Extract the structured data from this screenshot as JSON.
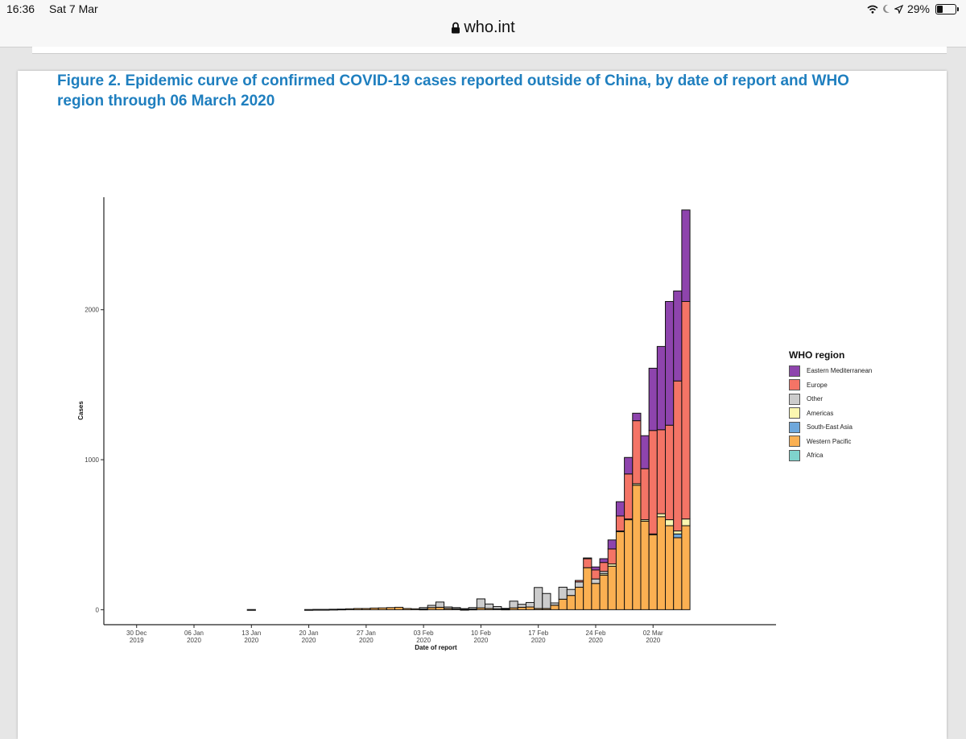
{
  "status_bar": {
    "time": "16:36",
    "date": "Sat 7 Mar",
    "battery": "29%"
  },
  "browser": {
    "url": "who.int"
  },
  "figure": {
    "title": "Figure 2. Epidemic curve of confirmed COVID-19 cases reported outside of China, by date of report and WHO region through 06 March 2020"
  },
  "colors": {
    "Eastern Mediterranean": "#8e44ad",
    "Europe": "#f47466",
    "Other": "#cccccc",
    "Americas": "#fbf7b0",
    "South-East Asia": "#6fa8dc",
    "Western Pacific": "#fbb052",
    "Africa": "#7fd3cc"
  },
  "legend": {
    "title": "WHO region",
    "items": [
      "Eastern Mediterranean",
      "Europe",
      "Other",
      "Americas",
      "South-East Asia",
      "Western Pacific",
      "Africa"
    ]
  },
  "chart_data": {
    "type": "bar",
    "stacked": true,
    "title": "",
    "xlabel": "Date of report",
    "ylabel": "Cases",
    "ylim": [
      -100,
      2750
    ],
    "yticks": [
      0,
      1000,
      2000
    ],
    "xlim": [
      "2019-12-26",
      "2020-03-17"
    ],
    "xticks": [
      {
        "date": "2019-12-30",
        "line1": "30 Dec",
        "line2": "2019"
      },
      {
        "date": "2020-01-06",
        "line1": "06 Jan",
        "line2": "2020"
      },
      {
        "date": "2020-01-13",
        "line1": "13 Jan",
        "line2": "2020"
      },
      {
        "date": "2020-01-20",
        "line1": "20 Jan",
        "line2": "2020"
      },
      {
        "date": "2020-01-27",
        "line1": "27 Jan",
        "line2": "2020"
      },
      {
        "date": "2020-02-03",
        "line1": "03 Feb",
        "line2": "2020"
      },
      {
        "date": "2020-02-10",
        "line1": "10 Feb",
        "line2": "2020"
      },
      {
        "date": "2020-02-17",
        "line1": "17 Feb",
        "line2": "2020"
      },
      {
        "date": "2020-02-24",
        "line1": "24 Feb",
        "line2": "2020"
      },
      {
        "date": "2020-03-02",
        "line1": "02 Mar",
        "line2": "2020"
      }
    ],
    "series_order": [
      "Africa",
      "Western Pacific",
      "South-East Asia",
      "Americas",
      "Other",
      "Europe",
      "Eastern Mediterranean"
    ],
    "dates": [
      "2020-01-13",
      "2020-01-20",
      "2020-01-21",
      "2020-01-22",
      "2020-01-23",
      "2020-01-24",
      "2020-01-25",
      "2020-01-26",
      "2020-01-27",
      "2020-01-28",
      "2020-01-29",
      "2020-01-30",
      "2020-01-31",
      "2020-02-01",
      "2020-02-02",
      "2020-02-03",
      "2020-02-04",
      "2020-02-05",
      "2020-02-06",
      "2020-02-07",
      "2020-02-08",
      "2020-02-09",
      "2020-02-10",
      "2020-02-11",
      "2020-02-12",
      "2020-02-13",
      "2020-02-14",
      "2020-02-15",
      "2020-02-16",
      "2020-02-17",
      "2020-02-18",
      "2020-02-19",
      "2020-02-20",
      "2020-02-21",
      "2020-02-22",
      "2020-02-23",
      "2020-02-24",
      "2020-02-25",
      "2020-02-26",
      "2020-02-27",
      "2020-02-28",
      "2020-02-29",
      "2020-03-01",
      "2020-03-02",
      "2020-03-03",
      "2020-03-04",
      "2020-03-05",
      "2020-03-06"
    ],
    "series": [
      {
        "name": "Western Pacific",
        "values": [
          1,
          1,
          2,
          2,
          3,
          4,
          6,
          8,
          8,
          11,
          12,
          14,
          16,
          8,
          6,
          4,
          14,
          16,
          8,
          6,
          2,
          4,
          12,
          8,
          6,
          4,
          12,
          16,
          18,
          8,
          8,
          30,
          70,
          95,
          150,
          280,
          175,
          230,
          290,
          520,
          600,
          830,
          590,
          500,
          620,
          560,
          480,
          560
        ]
      },
      {
        "name": "South-East Asia",
        "values": [
          0,
          0,
          0,
          0,
          0,
          0,
          0,
          0,
          0,
          0,
          0,
          0,
          0,
          0,
          0,
          0,
          0,
          0,
          0,
          0,
          0,
          0,
          0,
          0,
          0,
          0,
          0,
          0,
          0,
          0,
          0,
          0,
          0,
          0,
          0,
          0,
          0,
          0,
          0,
          0,
          0,
          0,
          0,
          0,
          0,
          0,
          25,
          0
        ]
      },
      {
        "name": "Americas",
        "values": [
          0,
          0,
          0,
          0,
          0,
          0,
          0,
          0,
          0,
          0,
          0,
          0,
          0,
          0,
          0,
          0,
          0,
          0,
          0,
          0,
          0,
          0,
          0,
          0,
          0,
          0,
          0,
          0,
          0,
          0,
          0,
          0,
          0,
          0,
          0,
          0,
          0,
          10,
          15,
          5,
          5,
          10,
          10,
          5,
          20,
          40,
          20,
          45
        ]
      },
      {
        "name": "Other",
        "values": [
          0,
          0,
          0,
          0,
          0,
          0,
          0,
          0,
          0,
          0,
          0,
          0,
          0,
          0,
          0,
          10,
          15,
          35,
          10,
          8,
          5,
          10,
          60,
          30,
          15,
          5,
          45,
          20,
          30,
          140,
          100,
          15,
          80,
          40,
          35,
          0,
          30,
          15,
          0,
          0,
          0,
          0,
          0,
          0,
          0,
          0,
          0,
          0
        ]
      },
      {
        "name": "Europe",
        "values": [
          0,
          0,
          0,
          0,
          0,
          0,
          0,
          0,
          0,
          0,
          0,
          0,
          0,
          0,
          0,
          0,
          0,
          0,
          0,
          0,
          0,
          0,
          0,
          0,
          0,
          0,
          0,
          0,
          0,
          0,
          0,
          0,
          0,
          0,
          10,
          60,
          60,
          60,
          100,
          100,
          300,
          420,
          340,
          690,
          560,
          630,
          1000,
          1450
        ]
      },
      {
        "name": "Eastern Mediterranean",
        "values": [
          0,
          0,
          0,
          0,
          0,
          0,
          0,
          0,
          0,
          0,
          0,
          0,
          0,
          0,
          0,
          0,
          0,
          0,
          0,
          0,
          0,
          0,
          0,
          0,
          0,
          0,
          0,
          0,
          0,
          0,
          0,
          0,
          0,
          0,
          0,
          5,
          20,
          25,
          60,
          95,
          110,
          50,
          220,
          415,
          555,
          825,
          600,
          610
        ]
      }
    ]
  }
}
